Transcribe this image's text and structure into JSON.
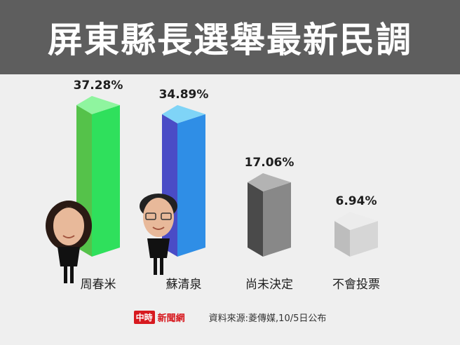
{
  "header": {
    "title": "屏東縣長選舉最新民調"
  },
  "chart_data": {
    "type": "bar",
    "categories": [
      "周春米",
      "蘇清泉",
      "尚未決定",
      "不會投票"
    ],
    "values": [
      37.28,
      34.89,
      17.06,
      6.94
    ],
    "value_labels": [
      "37.28%",
      "34.89%",
      "17.06%",
      "6.94%"
    ],
    "ylim": [
      0,
      40
    ],
    "colors": [
      {
        "front": "#2fe05c",
        "side": "#55c24a",
        "top": "#8ff59f"
      },
      {
        "front": "#2f8ee6",
        "side": "#4a4cc6",
        "top": "#7fd4f7"
      },
      {
        "front": "#888888",
        "side": "#4a4a4a",
        "top": "#b3b3b3"
      },
      {
        "front": "#d6d6d6",
        "side": "#bdbdbd",
        "top": "#ececec"
      }
    ],
    "portraits": [
      {
        "category": "周春米",
        "icon": "candidate-portrait-woman-icon"
      },
      {
        "category": "蘇清泉",
        "icon": "candidate-portrait-man-icon"
      }
    ]
  },
  "footer": {
    "brand_badge": "中時",
    "brand_name": "新聞網",
    "source": "資料來源:菱傳媒,10/5日公布"
  }
}
